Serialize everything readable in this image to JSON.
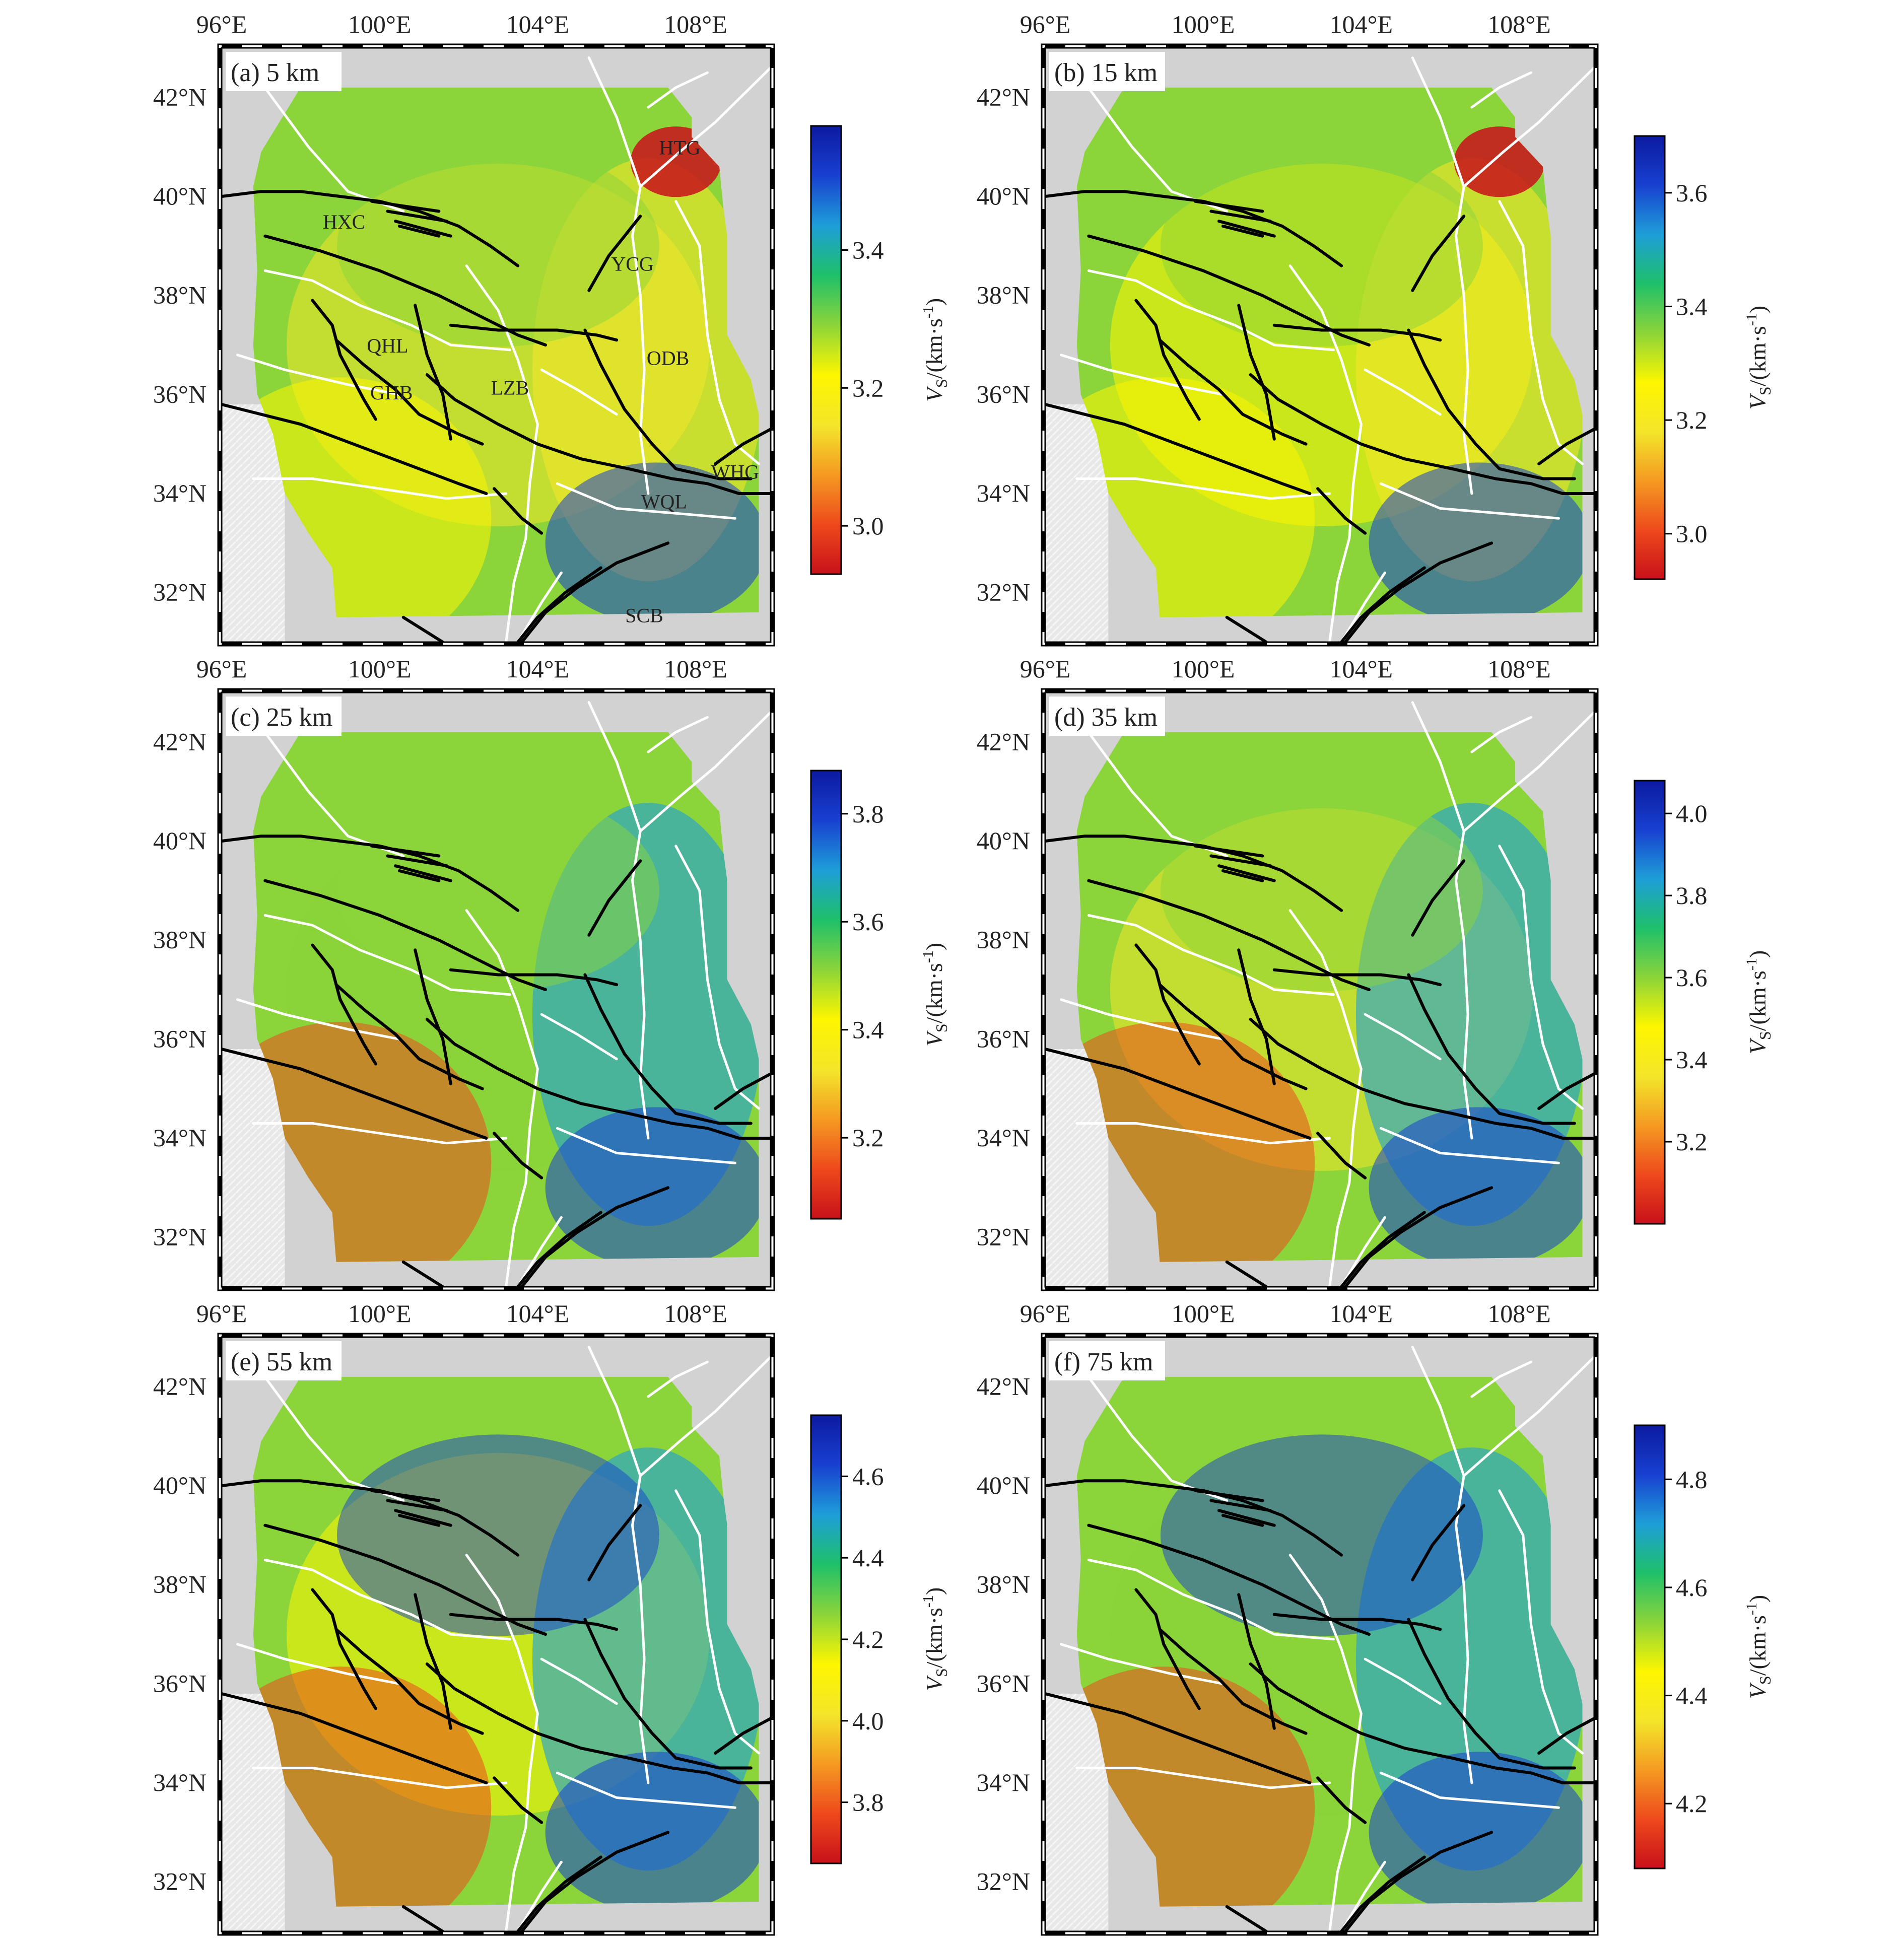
{
  "figure": {
    "lon_ticks": [
      "96°E",
      "100°E",
      "104°E",
      "108°E"
    ],
    "lat_ticks": [
      "42°N",
      "40°N",
      "38°N",
      "36°N",
      "34°N",
      "32°N"
    ],
    "colorbar_label": "V",
    "colorbar_sub": "S",
    "colorbar_unit": "/(km·s",
    "colorbar_exp": "-1",
    "colorbar_close": ")"
  },
  "place_labels": [
    {
      "text": "HTG",
      "lon": 107.6,
      "lat": 40.85
    },
    {
      "text": "HXC",
      "lon": 99.1,
      "lat": 39.35
    },
    {
      "text": "YCG",
      "lon": 106.4,
      "lat": 38.5
    },
    {
      "text": "QHL",
      "lon": 100.2,
      "lat": 36.85
    },
    {
      "text": "ODB",
      "lon": 107.3,
      "lat": 36.6
    },
    {
      "text": "GHB",
      "lon": 100.3,
      "lat": 35.9
    },
    {
      "text": "LZB",
      "lon": 103.3,
      "lat": 36.0
    },
    {
      "text": "WHG",
      "lon": 109.0,
      "lat": 34.3
    },
    {
      "text": "WQL",
      "lon": 107.2,
      "lat": 33.7
    },
    {
      "text": "SCB",
      "lon": 106.7,
      "lat": 31.4
    }
  ],
  "panels": [
    {
      "label": "(a) 5 km",
      "ticks": [
        "3.0",
        "3.2",
        "3.4"
      ],
      "tick_values": [
        3.0,
        3.2,
        3.4
      ],
      "vmin": 2.93,
      "vmax": 3.58,
      "show_places": true
    },
    {
      "label": "(b) 15 km",
      "ticks": [
        "3.0",
        "3.2",
        "3.4",
        "3.6"
      ],
      "tick_values": [
        3.0,
        3.2,
        3.4,
        3.6
      ],
      "vmin": 2.92,
      "vmax": 3.7,
      "show_places": false
    },
    {
      "label": "(c) 25 km",
      "ticks": [
        "3.2",
        "3.4",
        "3.6",
        "3.8"
      ],
      "tick_values": [
        3.2,
        3.4,
        3.6,
        3.8
      ],
      "vmin": 3.05,
      "vmax": 3.88,
      "show_places": false
    },
    {
      "label": "(d) 35 km",
      "ticks": [
        "3.2",
        "3.4",
        "3.6",
        "3.8",
        "4.0"
      ],
      "tick_values": [
        3.2,
        3.4,
        3.6,
        3.8,
        4.0
      ],
      "vmin": 3.0,
      "vmax": 4.08,
      "show_places": false
    },
    {
      "label": "(e) 55 km",
      "ticks": [
        "3.8",
        "4.0",
        "4.2",
        "4.4",
        "4.6"
      ],
      "tick_values": [
        3.8,
        4.0,
        4.2,
        4.4,
        4.6
      ],
      "vmin": 3.65,
      "vmax": 4.75,
      "show_places": false
    },
    {
      "label": "(f) 75 km",
      "ticks": [
        "4.2",
        "4.4",
        "4.6",
        "4.8"
      ],
      "tick_values": [
        4.2,
        4.4,
        4.6,
        4.8
      ],
      "vmin": 4.08,
      "vmax": 4.9,
      "show_places": false
    }
  ],
  "colors": {
    "gradient": [
      "#c8101a",
      "#ee4a1c",
      "#f59a22",
      "#f3e62a",
      "#fdf600",
      "#8bd43a",
      "#1ec06a",
      "#1e9ed8",
      "#1840d0",
      "#0c1aa0"
    ],
    "region_bg": "#d2d2d2",
    "fault": "#000000",
    "boundary": "#ffffff"
  }
}
